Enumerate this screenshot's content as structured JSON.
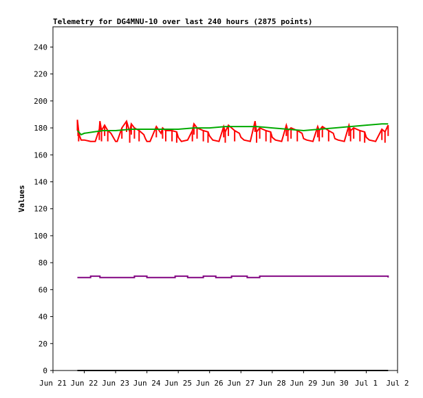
{
  "chart_data": {
    "type": "line",
    "title": "Telemetry for DG4MNU-10 over last 240 hours (2875 points)",
    "xlabel": "",
    "ylabel": "Values",
    "x_tick_labels": [
      "Jun 21",
      "Jun 22",
      "Jun 23",
      "Jun 24",
      "Jun 25",
      "Jun 26",
      "Jun 27",
      "Jun 28",
      "Jun 29",
      "Jun 30",
      "Jul 1",
      "Jul 2"
    ],
    "y_ticks": [
      0,
      20,
      40,
      60,
      80,
      100,
      120,
      140,
      160,
      180,
      200,
      220,
      240
    ],
    "xlim_days": [
      0,
      11
    ],
    "ylim": [
      0,
      255
    ],
    "grid": false,
    "legend": "none",
    "series": [
      {
        "color": "#ff0000",
        "style": "daily-cycle",
        "x": [
          0.78,
          0.8,
          0.82,
          0.85,
          0.9,
          1.0,
          1.2,
          1.35,
          1.48,
          1.5,
          1.55,
          1.65,
          1.75,
          1.85,
          1.95,
          2.0,
          2.05,
          2.2,
          2.35,
          2.45,
          2.5,
          2.6,
          2.75,
          2.9,
          2.95,
          3.0,
          3.1,
          3.3,
          3.45,
          3.5,
          3.6,
          3.8,
          3.95,
          4.0,
          4.1,
          4.3,
          4.45,
          4.5,
          4.6,
          4.8,
          4.95,
          5.0,
          5.1,
          5.3,
          5.45,
          5.5,
          5.6,
          5.8,
          5.95,
          6.0,
          6.1,
          6.3,
          6.45,
          6.5,
          6.6,
          6.8,
          6.95,
          7.0,
          7.1,
          7.3,
          7.45,
          7.5,
          7.6,
          7.8,
          7.95,
          8.0,
          8.1,
          8.3,
          8.45,
          8.5,
          8.6,
          8.8,
          8.95,
          9.0,
          9.1,
          9.3,
          9.45,
          9.5,
          9.6,
          9.8,
          9.95,
          10.0,
          10.1,
          10.3,
          10.5,
          10.6,
          10.7
        ],
        "y": [
          186,
          182,
          178,
          174,
          171,
          171,
          170,
          170,
          179,
          185,
          178,
          182,
          178,
          176,
          172,
          170,
          170,
          180,
          185,
          177,
          183,
          180,
          178,
          175,
          172,
          170,
          170,
          181,
          176,
          180,
          178,
          178,
          177,
          173,
          170,
          171,
          178,
          183,
          180,
          178,
          177,
          174,
          171,
          170,
          181,
          177,
          182,
          178,
          176,
          173,
          171,
          170,
          185,
          177,
          180,
          178,
          177,
          173,
          171,
          170,
          182,
          178,
          180,
          178,
          176,
          172,
          171,
          170,
          181,
          178,
          181,
          178,
          176,
          172,
          171,
          170,
          182,
          178,
          180,
          178,
          177,
          173,
          171,
          170,
          179,
          177,
          182
        ]
      },
      {
        "color": "#00aa00",
        "style": "smooth-step",
        "x": [
          0.78,
          0.9,
          1.0,
          1.3,
          1.6,
          2.0,
          2.5,
          3.0,
          3.5,
          4.0,
          4.5,
          5.0,
          5.5,
          6.0,
          6.5,
          7.0,
          7.5,
          8.0,
          8.5,
          9.0,
          9.5,
          10.0,
          10.5,
          10.7
        ],
        "y": [
          178,
          175,
          176,
          177,
          178,
          178,
          179,
          179,
          179,
          179,
          180,
          180,
          181,
          181,
          181,
          180,
          179,
          178,
          179,
          180,
          181,
          182,
          183,
          183
        ]
      },
      {
        "color": "#800080",
        "style": "step",
        "x": [
          0.78,
          1.2,
          1.5,
          2.0,
          2.5,
          2.6,
          3.0,
          3.4,
          3.9,
          4.3,
          4.8,
          5.2,
          5.7,
          6.2,
          6.6,
          7.0,
          10.5,
          10.7
        ],
        "y": [
          69,
          70,
          69,
          69,
          69,
          70,
          69,
          69,
          70,
          69,
          70,
          69,
          70,
          69,
          70,
          70,
          70,
          69
        ]
      },
      {
        "color": "#000000",
        "style": "step",
        "x": [
          0.78,
          10.7
        ],
        "y": [
          0,
          0
        ]
      }
    ]
  }
}
